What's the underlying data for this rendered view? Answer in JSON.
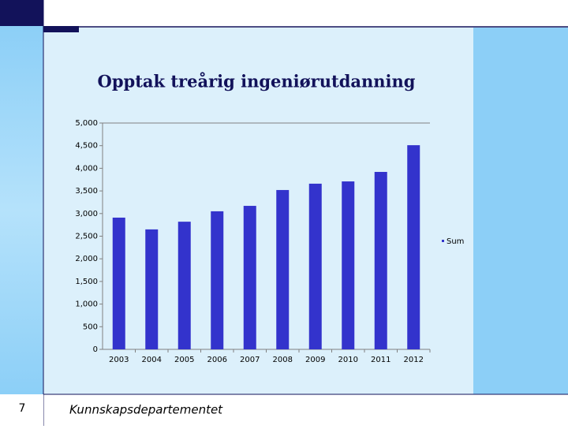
{
  "chart_data": {
    "type": "bar",
    "title": "Opptak treårig ingeniørutdanning",
    "categories": [
      "2003",
      "2004",
      "2005",
      "2006",
      "2007",
      "2008",
      "2009",
      "2010",
      "2011",
      "2012"
    ],
    "series": [
      {
        "name": "Sum",
        "color": "#3333cc",
        "values": [
          2910,
          2650,
          2820,
          3050,
          3170,
          3520,
          3660,
          3710,
          3920,
          4510
        ]
      }
    ],
    "ylim": [
      0,
      5000
    ],
    "yticks": [
      0,
      500,
      {
        "value": 1000,
        "label": "1,000"
      },
      {
        "value": 1500,
        "label": "1,500"
      },
      {
        "value": 2000,
        "label": "2,000"
      },
      {
        "value": 2500,
        "label": "2,500"
      },
      {
        "value": 3000,
        "label": "3,000"
      },
      {
        "value": 3500,
        "label": "3,500"
      },
      {
        "value": 4000,
        "label": "4,000"
      },
      {
        "value": 4500,
        "label": "4,500"
      },
      {
        "value": 5000,
        "label": "5,000"
      }
    ],
    "grid": false,
    "legend": "right"
  },
  "footer": {
    "page_number": "7",
    "text": "Kunnskapsdepartementet"
  }
}
